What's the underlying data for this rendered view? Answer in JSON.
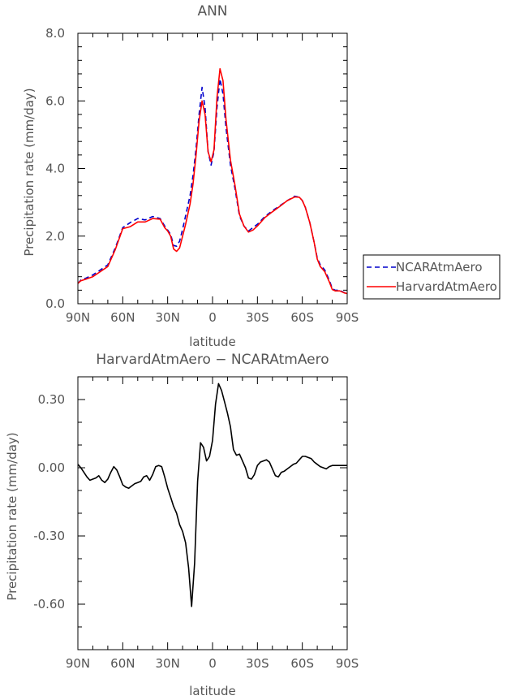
{
  "chart_data": [
    {
      "type": "line",
      "title": "ANN",
      "xlabel": "latitude",
      "ylabel": "Precipitation rate (mm/day)",
      "xlim": [
        90,
        -90
      ],
      "ylim": [
        0,
        8
      ],
      "x_ticks": [
        90,
        60,
        30,
        0,
        -30,
        -60,
        -90
      ],
      "x_tick_labels": [
        "90N",
        "60N",
        "30N",
        "0",
        "30S",
        "60S",
        "90S"
      ],
      "y_ticks": [
        0,
        2,
        4,
        6,
        8
      ],
      "y_tick_labels": [
        "0.0",
        "2.0",
        "4.0",
        "6.0",
        "8.0"
      ],
      "legend_position": "right",
      "series": [
        {
          "name": "NCARAtmAero",
          "color": "#0000cc",
          "dash": "dashed",
          "x": [
            90,
            88,
            85,
            80,
            75,
            70,
            65,
            60,
            55,
            50,
            45,
            40,
            35,
            32,
            30,
            28,
            26,
            24,
            22,
            20,
            18,
            15,
            13,
            11,
            9,
            7,
            5,
            3,
            1,
            -1,
            -3,
            -5,
            -7,
            -9,
            -12,
            -15,
            -18,
            -21,
            -24,
            -27,
            -30,
            -35,
            -40,
            -45,
            -50,
            -55,
            -58,
            -60,
            -62,
            -65,
            -68,
            -70,
            -72,
            -75,
            -78,
            -80,
            -82,
            -85,
            -88,
            -90
          ],
          "y": [
            0.6,
            0.7,
            0.75,
            0.85,
            1.0,
            1.15,
            1.65,
            2.25,
            2.4,
            2.52,
            2.48,
            2.58,
            2.52,
            2.3,
            2.18,
            2.05,
            1.72,
            1.7,
            1.85,
            2.2,
            2.6,
            3.2,
            3.8,
            4.6,
            5.6,
            6.4,
            5.8,
            4.5,
            4.1,
            4.5,
            5.8,
            6.65,
            6.2,
            5.2,
            4.1,
            3.4,
            2.6,
            2.3,
            2.15,
            2.25,
            2.35,
            2.58,
            2.75,
            2.9,
            3.05,
            3.18,
            3.15,
            3.05,
            2.85,
            2.4,
            1.8,
            1.35,
            1.15,
            1.0,
            0.7,
            0.45,
            0.4,
            0.4,
            0.33,
            0.3
          ]
        },
        {
          "name": "HarvardAtmAero",
          "color": "#ff0000",
          "dash": "solid",
          "x": [
            90,
            88,
            85,
            80,
            75,
            70,
            65,
            60,
            55,
            50,
            45,
            40,
            35,
            32,
            30,
            28,
            26,
            24,
            22,
            20,
            18,
            15,
            13,
            11,
            9,
            7,
            5,
            3,
            1,
            -1,
            -3,
            -5,
            -7,
            -9,
            -12,
            -15,
            -18,
            -21,
            -24,
            -27,
            -30,
            -35,
            -40,
            -45,
            -50,
            -55,
            -58,
            -60,
            -62,
            -65,
            -68,
            -70,
            -72,
            -75,
            -78,
            -80,
            -82,
            -85,
            -88,
            -90
          ],
          "y": [
            0.6,
            0.68,
            0.72,
            0.8,
            0.95,
            1.1,
            1.6,
            2.22,
            2.28,
            2.42,
            2.42,
            2.52,
            2.5,
            2.25,
            2.15,
            2.0,
            1.62,
            1.55,
            1.65,
            2.0,
            2.35,
            2.95,
            3.55,
            4.4,
            5.4,
            6.0,
            5.6,
            4.5,
            4.2,
            4.55,
            6.1,
            6.95,
            6.6,
            5.45,
            4.25,
            3.5,
            2.65,
            2.3,
            2.12,
            2.18,
            2.3,
            2.55,
            2.72,
            2.88,
            3.05,
            3.16,
            3.15,
            3.05,
            2.85,
            2.4,
            1.8,
            1.32,
            1.1,
            0.95,
            0.65,
            0.42,
            0.38,
            0.38,
            0.32,
            0.3
          ]
        }
      ]
    },
    {
      "type": "line",
      "title": "HarvardAtmAero − NCARAtmAero",
      "xlabel": "latitude",
      "ylabel": "Precipitation rate (mm/day)",
      "xlim": [
        90,
        -90
      ],
      "ylim": [
        -0.8,
        0.4
      ],
      "x_ticks": [
        90,
        60,
        30,
        0,
        -30,
        -60,
        -90
      ],
      "x_tick_labels": [
        "90N",
        "60N",
        "30N",
        "0",
        "30S",
        "60S",
        "90S"
      ],
      "y_ticks": [
        -0.6,
        -0.3,
        0.0,
        0.3
      ],
      "y_tick_labels": [
        "-0.60",
        "-0.30",
        "0.00",
        "0.30"
      ],
      "series": [
        {
          "color": "#000000",
          "dash": "solid",
          "x": [
            90,
            88,
            86,
            84,
            82,
            80,
            78,
            76,
            74,
            72,
            70,
            68,
            66,
            64,
            62,
            60,
            58,
            56,
            54,
            52,
            50,
            48,
            46,
            44,
            42,
            40,
            38,
            36,
            34,
            32,
            30,
            28,
            26,
            24,
            22,
            20,
            18,
            16,
            14,
            12,
            10,
            8,
            6,
            4,
            3,
            2,
            0,
            -2,
            -4,
            -6,
            -8,
            -10,
            -12,
            -14,
            -16,
            -18,
            -20,
            -22,
            -24,
            -26,
            -28,
            -30,
            -32,
            -34,
            -36,
            -38,
            -40,
            -42,
            -44,
            -46,
            -48,
            -50,
            -52,
            -54,
            -56,
            -58,
            -60,
            -62,
            -64,
            -66,
            -68,
            -70,
            -72,
            -74,
            -76,
            -78,
            -80,
            -82,
            -84,
            -86,
            -88,
            -90
          ],
          "y": [
            0.015,
            0.0,
            -0.02,
            -0.04,
            -0.055,
            -0.05,
            -0.045,
            -0.035,
            -0.055,
            -0.065,
            -0.05,
            -0.02,
            0.005,
            -0.01,
            -0.04,
            -0.075,
            -0.085,
            -0.09,
            -0.08,
            -0.07,
            -0.065,
            -0.06,
            -0.04,
            -0.035,
            -0.055,
            -0.03,
            0.005,
            0.01,
            0.005,
            -0.04,
            -0.09,
            -0.13,
            -0.17,
            -0.2,
            -0.25,
            -0.28,
            -0.33,
            -0.44,
            -0.61,
            -0.42,
            -0.06,
            0.11,
            0.09,
            0.03,
            0.04,
            0.05,
            0.12,
            0.28,
            0.37,
            0.34,
            0.29,
            0.24,
            0.18,
            0.08,
            0.055,
            0.06,
            0.03,
            0.0,
            -0.045,
            -0.05,
            -0.03,
            0.01,
            0.025,
            0.03,
            0.035,
            0.025,
            -0.005,
            -0.035,
            -0.04,
            -0.02,
            -0.015,
            -0.005,
            0.005,
            0.015,
            0.02,
            0.035,
            0.05,
            0.05,
            0.045,
            0.04,
            0.025,
            0.015,
            0.005,
            0.0,
            -0.005,
            0.005,
            0.01,
            0.01,
            0.01,
            0.01,
            0.01,
            0.01
          ]
        }
      ]
    }
  ]
}
